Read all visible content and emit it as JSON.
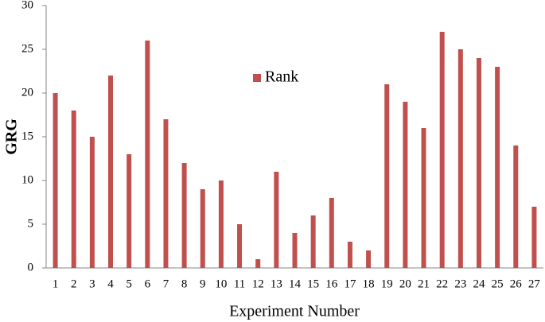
{
  "chart_data": {
    "type": "bar",
    "x_label": "Experiment Number",
    "y_label": "GRG",
    "categories": [
      "1",
      "2",
      "3",
      "4",
      "5",
      "6",
      "7",
      "8",
      "9",
      "10",
      "11",
      "12",
      "13",
      "14",
      "15",
      "16",
      "17",
      "18",
      "19",
      "20",
      "21",
      "22",
      "23",
      "24",
      "25",
      "26",
      "27"
    ],
    "series": [
      {
        "name": "Rank",
        "color": "#c0504d",
        "values": [
          20,
          18,
          15,
          22,
          13,
          26,
          17,
          12,
          9,
          10,
          5,
          1,
          11,
          4,
          6,
          8,
          3,
          2,
          21,
          19,
          16,
          27,
          25,
          24,
          23,
          14,
          7
        ]
      }
    ],
    "ylim": [
      0,
      30
    ],
    "yticks": [
      0,
      5,
      10,
      15,
      20,
      25,
      30
    ],
    "grid": false,
    "legend": "upper center"
  }
}
